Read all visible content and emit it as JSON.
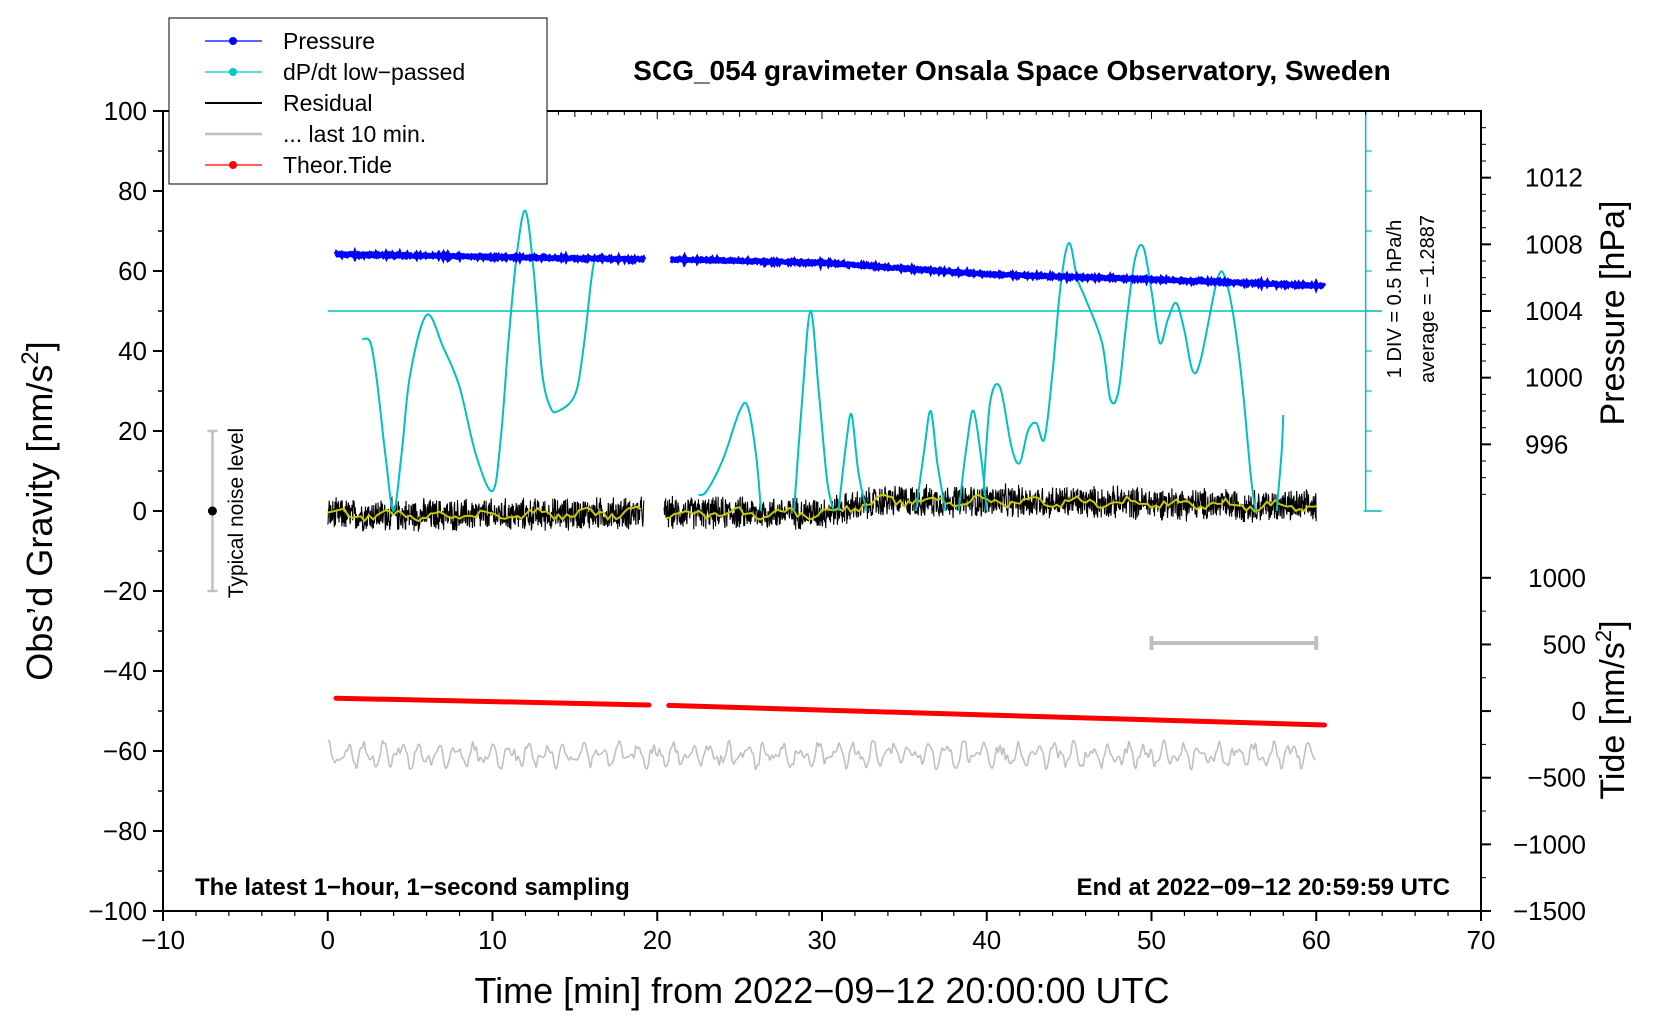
{
  "chart_data": {
    "type": "line",
    "title": "SCG_054 gravimeter Onsala Space Observatory, Sweden",
    "xlabel": "Time [min] from 2022−09−12 20:00:00 UTC",
    "ylabel": "Obs’d Gravity [nm/s²]",
    "ylabel_main": "Obs’d Gravity [nm/s",
    "ylabel_sup": "2",
    "ylabel_close": "]",
    "xlim": [
      -10,
      70
    ],
    "ylim": [
      -100,
      100
    ],
    "x_ticks": [
      "−10",
      "0",
      "10",
      "20",
      "30",
      "40",
      "50",
      "60",
      "70"
    ],
    "x_tick_values": [
      -10,
      0,
      10,
      20,
      30,
      40,
      50,
      60,
      70
    ],
    "y_ticks": [
      "100",
      "80",
      "60",
      "40",
      "20",
      "0",
      "−20",
      "−40",
      "−60",
      "−80",
      "−100"
    ],
    "y_tick_values": [
      100,
      80,
      60,
      40,
      20,
      0,
      -20,
      -40,
      -60,
      -80,
      -100
    ],
    "pressure_axis": {
      "label": "Pressure [hPa]",
      "ticks": [
        "1012",
        "1008",
        "1004",
        "1000",
        "996"
      ],
      "tick_values": [
        1012,
        1008,
        1004,
        1000,
        996
      ],
      "range": [
        992.0,
        1016.0
      ]
    },
    "tide_axis": {
      "label_main": "Tide [nm/s",
      "label_sup": "2",
      "label_close": "]",
      "ticks": [
        "1000",
        "500",
        "0",
        "−500",
        "−1000",
        "−1500"
      ],
      "tick_values": [
        1000,
        500,
        0,
        -500,
        -1000,
        -1500
      ],
      "range": [
        -1500,
        1000
      ]
    },
    "legend": {
      "position": "top-left",
      "entries": [
        {
          "label": "Pressure",
          "color": "#0000ff",
          "marker": true
        },
        {
          "label": "dP/dt low−passed",
          "color": "#00c8c8",
          "marker": true
        },
        {
          "label": "Residual",
          "color": "#000000",
          "marker": false
        },
        {
          "label": "... last 10 min.",
          "color": "#c0c0c0",
          "marker": false
        },
        {
          "label": "Theor.Tide",
          "color": "#ff0000",
          "marker": true
        }
      ]
    },
    "annotations": {
      "noise_label": "Typical noise level",
      "noise_bar": {
        "x": -7,
        "y_low": -20,
        "y_high": 20
      },
      "dpdt_div": "1 DIV = 0.5 hPa/h",
      "dpdt_average": "average = −1.2887",
      "dpdt_scale": {
        "x": 63,
        "y_low": 0,
        "y_high": 100
      },
      "baseline_y": 50,
      "bottom_left": "The latest 1−hour, 1−second sampling",
      "bottom_right": "End at 2022−09−12 20:59:59 UTC",
      "last10_bar": {
        "x_start": 50,
        "x_end": 60,
        "y": -33
      }
    },
    "colors": {
      "pressure": "#0000ff",
      "dpdt": "#00c0c0",
      "residual": "#000000",
      "residual_smooth": "#c8c800",
      "last10": "#c0c0c0",
      "tide": "#ff0000",
      "grey_bar": "#c0c0c0"
    },
    "series": [
      {
        "name": "Pressure",
        "unit": "hPa",
        "gap": [
          19.2,
          20.8
        ],
        "x": [
          0.5,
          19.2,
          20.8,
          30,
          40,
          50,
          60.5
        ],
        "values": [
          1007.4,
          1007.1,
          1007.1,
          1006.9,
          1006.2,
          1005.9,
          1005.5
        ]
      },
      {
        "name": "dP/dt low-passed",
        "unit": "nm/s2 (plotted scale)",
        "segments": [
          {
            "x": [
              2.1,
              2.6,
              3.0,
              3.5,
              4.0,
              4.5,
              5.0,
              6.0,
              7.0,
              8.0,
              9.0,
              10.0,
              10.5,
              11.0,
              11.5,
              12.0,
              12.5,
              13.0,
              13.5,
              14.0,
              15.0,
              15.5,
              16.0,
              16.2
            ],
            "values": [
              43,
              42,
              32,
              14,
              0,
              15,
              34,
              49,
              41,
              31,
              14,
              5,
              18,
              44,
              65,
              75,
              60,
              35,
              26,
              25,
              29,
              40,
              58,
              63
            ]
          },
          {
            "x": [
              22.5,
              23.0,
              24.0,
              25.0,
              25.5,
              26.0,
              26.3
            ],
            "values": [
              4,
              5,
              13,
              25,
              26,
              14,
              0
            ]
          },
          {
            "x": [
              28.3,
              28.8,
              29.3,
              29.8,
              30.3,
              30.7
            ],
            "values": [
              0,
              28,
              50,
              30,
              8,
              0
            ]
          },
          {
            "x": [
              31.0,
              31.5,
              31.8,
              32.2,
              32.7
            ],
            "values": [
              0,
              18,
              24,
              10,
              0
            ]
          },
          {
            "x": [
              35.7,
              36.2,
              36.6,
              37.0,
              37.5
            ],
            "values": [
              0,
              15,
              25,
              12,
              0
            ]
          },
          {
            "x": [
              38.3,
              38.8,
              39.2,
              39.7,
              40.0
            ],
            "values": [
              0,
              17,
              25,
              12,
              0
            ]
          },
          {
            "x": [
              39.8,
              40.2,
              40.8,
              41.5,
              42.0,
              42.5,
              43.0,
              43.5,
              44.0,
              44.5,
              45.0,
              45.5,
              46.0,
              47.0,
              47.5,
              48.0,
              48.5,
              49.0,
              49.5,
              50.0,
              50.5,
              51.0,
              51.5,
              52.0,
              52.5,
              53.0,
              54.0,
              54.5,
              55.0,
              55.5,
              56.0,
              56.3
            ],
            "values": [
              5,
              27,
              31,
              16,
              12,
              20,
              22,
              18,
              35,
              57,
              67,
              58,
              53,
              42,
              28,
              30,
              48,
              63,
              66,
              55,
              42,
              48,
              52,
              45,
              35,
              38,
              58,
              58,
              48,
              32,
              10,
              0
            ]
          },
          {
            "x": [
              57.6,
              57.9,
              58.0
            ],
            "values": [
              0,
              15,
              24
            ]
          }
        ]
      },
      {
        "name": "Residual",
        "unit": "nm/s2",
        "gap": [
          19.2,
          20.4
        ],
        "x": [
          0,
          10,
          19.2,
          20.4,
          30,
          33.8,
          40,
          50,
          60
        ],
        "values": [
          -1,
          -1,
          -0.5,
          -0.5,
          -0.5,
          2.5,
          2.5,
          2,
          1
        ],
        "noise_amplitude": 4
      },
      {
        "name": "... last 10 min.",
        "unit": "nm/s2",
        "x": [
          0,
          60
        ],
        "values": [
          -61,
          -61
        ],
        "noise_amplitude": 3.5
      },
      {
        "name": "Theor.Tide",
        "unit": "nm/s2",
        "gap": [
          19.5,
          20.7
        ],
        "x": [
          0.5,
          19.5,
          20.7,
          40,
          60.5
        ],
        "values": [
          -46.8,
          -48.5,
          -48.6,
          -51,
          -53.5
        ]
      }
    ]
  }
}
